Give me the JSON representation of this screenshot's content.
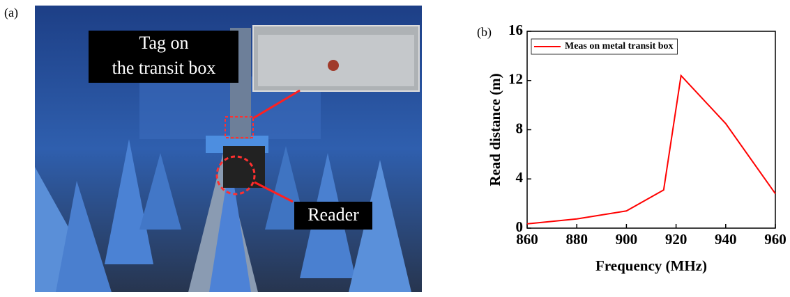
{
  "panel_labels": [
    "(a)",
    "(b)"
  ],
  "photo": {
    "tag_label": [
      "Tag on",
      "the transit box"
    ],
    "reader_label": "Reader"
  },
  "chart_data": {
    "type": "line",
    "x_label": "Frequency (MHz)",
    "y_label": "Read distance (m)",
    "x": [
      860,
      880,
      900,
      915,
      922,
      940,
      960
    ],
    "series": [
      {
        "name": "Meas on metal transit box",
        "color": "#ff0000",
        "values": [
          0.35,
          0.75,
          1.4,
          3.1,
          12.4,
          8.5,
          2.8
        ]
      }
    ],
    "xlim": [
      860,
      960
    ],
    "ylim": [
      0,
      16
    ],
    "xticks": [
      860,
      880,
      900,
      920,
      940,
      960
    ],
    "yticks": [
      0,
      4,
      8,
      12,
      16
    ],
    "legend": "upper left"
  }
}
